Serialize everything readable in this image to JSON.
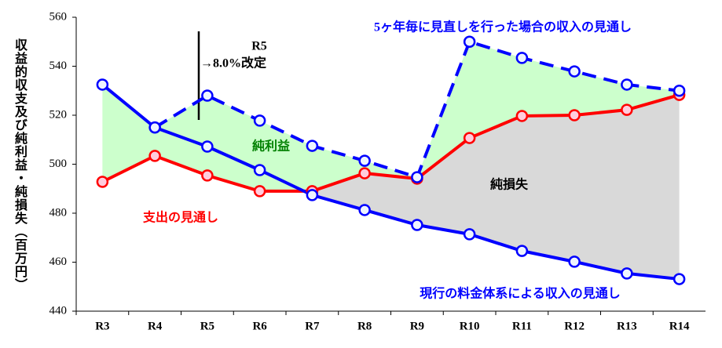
{
  "chart_data": {
    "type": "line",
    "y_label": "収益的収支及び純利益・純損失（百万円）",
    "categories": [
      "R3",
      "R4",
      "R5",
      "R6",
      "R7",
      "R8",
      "R9",
      "R10",
      "R11",
      "R12",
      "R13",
      "R14"
    ],
    "series": [
      {
        "color": "#0000ff",
        "dash": false,
        "values": [
          532.5,
          515,
          507.2,
          497.6,
          487.4,
          481.3,
          475.2,
          471.4,
          464.6,
          460.2,
          455.4,
          453.1
        ]
      },
      {
        "color": "#ff0000",
        "dash": false,
        "values": [
          492.8,
          503.4,
          495.4,
          489,
          489,
          496.3,
          494.1,
          510.7,
          519.7,
          520,
          522.2,
          528.3
        ]
      },
      {
        "color": "#0000ff",
        "dash": true,
        "values": [
          null,
          515,
          528,
          517.8,
          507.5,
          501.4,
          494.7,
          550,
          543.4,
          537.9,
          532.5,
          530
        ]
      }
    ],
    "ylim": [
      440,
      560
    ],
    "yticks": [
      440,
      460,
      480,
      500,
      520,
      540,
      560
    ],
    "annotations": [
      {
        "text": "R5"
      },
      {
        "text": "→8.0%改定"
      },
      {
        "text": "5ヶ年毎に見直しを行った場合の収入の見通し"
      },
      {
        "text": "純利益"
      },
      {
        "text": "純損失"
      },
      {
        "text": "支出の見通し"
      },
      {
        "text": "現行の料金体系による収入の見通し"
      }
    ]
  }
}
